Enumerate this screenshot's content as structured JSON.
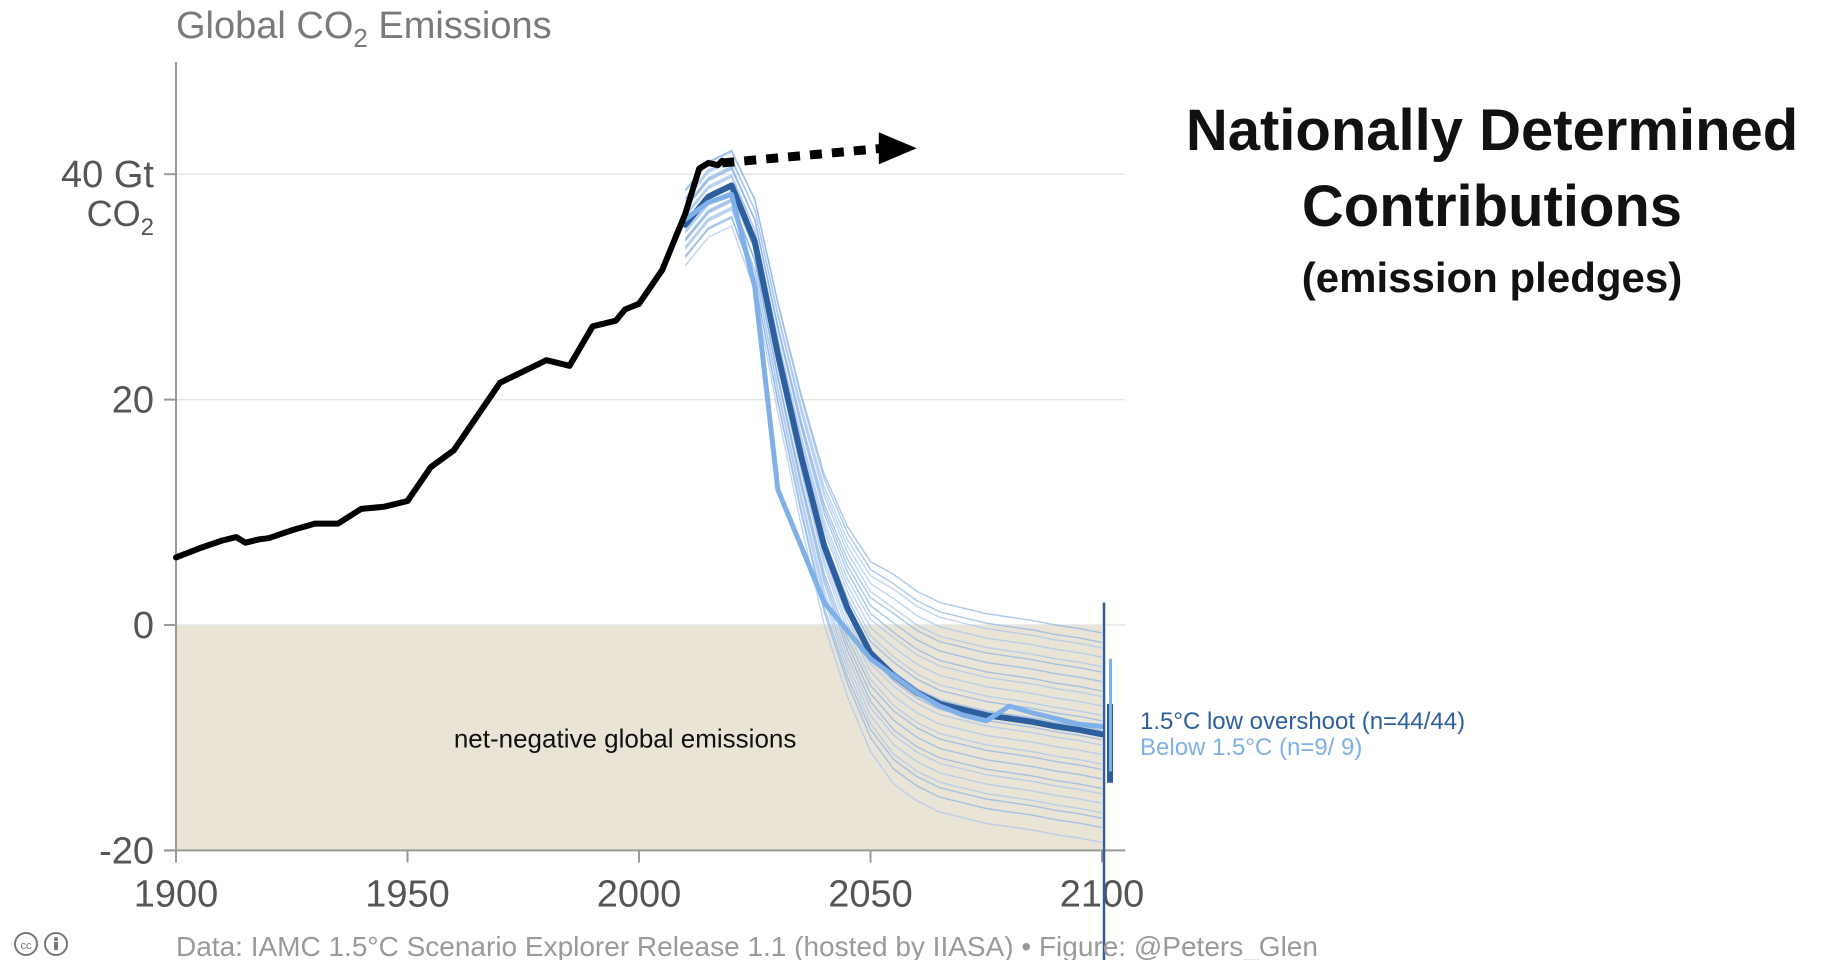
{
  "chart_data": {
    "type": "line",
    "title": "Global CO",
    "title_subscript": "2",
    "title_suffix": " Emissions",
    "xlabel": "",
    "ylabel": "",
    "xlim": [
      1900,
      2100
    ],
    "ylim": [
      -20,
      50
    ],
    "x_ticks": [
      1900,
      1950,
      2000,
      2050,
      2100
    ],
    "y_ticks": [
      {
        "value": 40,
        "label": "40 Gt",
        "unit_base": "CO",
        "unit_sub": "2"
      },
      {
        "value": 20,
        "label": "20"
      },
      {
        "value": 0,
        "label": "0"
      },
      {
        "value": -20,
        "label": "-20"
      }
    ],
    "grid": true,
    "shaded_region": {
      "from": 0,
      "to": -20,
      "label": "net-negative global emissions",
      "color": "#e9e4d6"
    },
    "historical": {
      "color": "#000000",
      "x": [
        1900,
        1905,
        1910,
        1913,
        1915,
        1918,
        1920,
        1925,
        1930,
        1935,
        1940,
        1945,
        1950,
        1955,
        1960,
        1965,
        1970,
        1975,
        1980,
        1985,
        1990,
        1995,
        1997,
        2000,
        2005,
        2010,
        2013,
        2015,
        2017,
        2018
      ],
      "y": [
        6.0,
        6.8,
        7.5,
        7.8,
        7.3,
        7.6,
        7.7,
        8.4,
        9.0,
        9.0,
        10.3,
        10.5,
        11.0,
        14.0,
        15.5,
        18.5,
        21.5,
        22.5,
        23.5,
        23.0,
        26.5,
        27.0,
        28.0,
        28.5,
        31.5,
        36.5,
        40.5,
        41.0,
        40.8,
        41.2
      ]
    },
    "ndc_arrow": {
      "x_start": 2018,
      "x_end": 2060,
      "y_start": 41.0,
      "y_end": 42.3,
      "style": "dotted",
      "color": "#000000"
    },
    "series": [
      {
        "name": "1.5°C low overshoot (n=44/44)",
        "color": "#2d5f9e",
        "x": [
          2010,
          2015,
          2020,
          2025,
          2030,
          2035,
          2040,
          2045,
          2050,
          2055,
          2060,
          2065,
          2070,
          2075,
          2080,
          2085,
          2090,
          2095,
          2100
        ],
        "y": [
          35.5,
          38.0,
          39.0,
          34.0,
          24.0,
          15.0,
          7.0,
          1.5,
          -2.5,
          -4.5,
          -6.0,
          -7.0,
          -7.5,
          -8.0,
          -8.3,
          -8.6,
          -9.0,
          -9.3,
          -9.7
        ]
      },
      {
        "name": "Below 1.5°C (n=9/ 9)",
        "color": "#7fb0e8",
        "x": [
          2010,
          2015,
          2020,
          2025,
          2030,
          2035,
          2040,
          2045,
          2050,
          2055,
          2060,
          2065,
          2070,
          2075,
          2080,
          2085,
          2090,
          2095,
          2100
        ],
        "y": [
          36.0,
          37.5,
          38.2,
          30.0,
          12.0,
          7.0,
          2.0,
          -0.5,
          -3.0,
          -4.5,
          -6.0,
          -7.2,
          -8.0,
          -8.5,
          -7.2,
          -7.8,
          -8.3,
          -8.8,
          -9.0
        ]
      }
    ],
    "annotations": {
      "headline_line1": "Nationally Determined",
      "headline_line2": "Contributions",
      "subhead": "(emission pledges)"
    },
    "footer": "Data: IAMC 1.5°C Scenario Explorer Release 1.1 (hosted by IIASA)  •  Figure: @Peters_Glen",
    "license_icons": "cc-by-icons"
  }
}
